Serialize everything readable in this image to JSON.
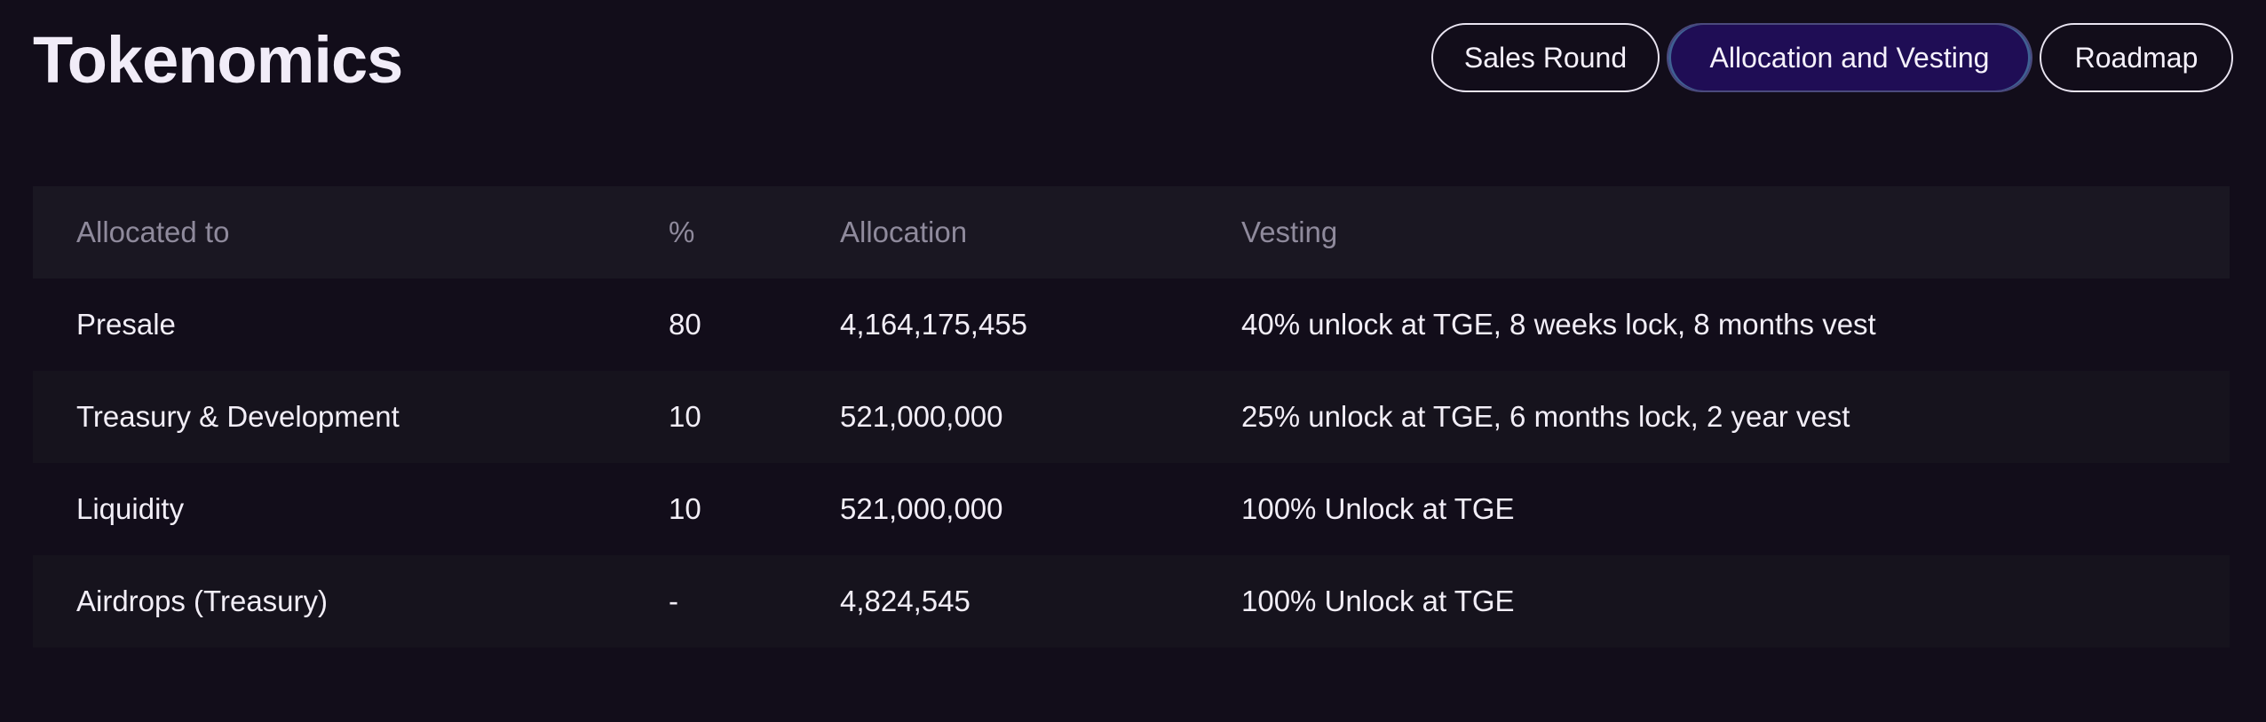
{
  "page": {
    "title": "Tokenomics"
  },
  "tabs": [
    {
      "label": "Sales Round",
      "active": false
    },
    {
      "label": "Allocation and Vesting",
      "active": true
    },
    {
      "label": "Roadmap",
      "active": false
    }
  ],
  "table": {
    "headers": [
      "Allocated to",
      "%",
      "Allocation",
      "Vesting"
    ],
    "rows": [
      {
        "allocated_to": "Presale",
        "percent": "80",
        "allocation": "4,164,175,455",
        "vesting": "40% unlock at TGE, 8 weeks lock, 8 months vest"
      },
      {
        "allocated_to": "Treasury & Development",
        "percent": "10",
        "allocation": "521,000,000",
        "vesting": "25% unlock at TGE, 6 months lock, 2 year vest"
      },
      {
        "allocated_to": "Liquidity",
        "percent": "10",
        "allocation": "521,000,000",
        "vesting": "100% Unlock at TGE"
      },
      {
        "allocated_to": "Airdrops (Treasury)",
        "percent": "-",
        "allocation": "4,824,545",
        "vesting": "100% Unlock at TGE"
      }
    ]
  },
  "colors": {
    "background": "#120d1a",
    "active_tab": "#1f0d55",
    "header_row": "#1a1722",
    "stripe_row": "#16131d"
  }
}
